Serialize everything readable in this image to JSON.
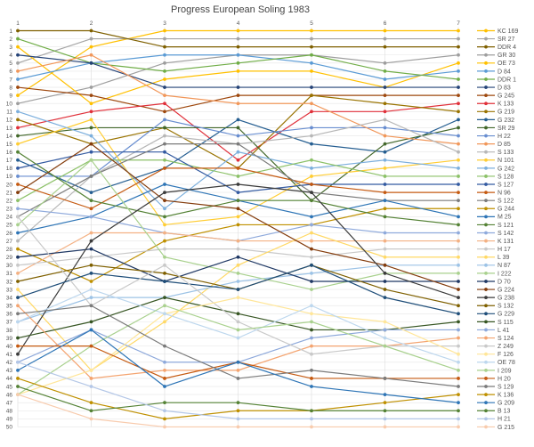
{
  "chart_data": {
    "type": "line",
    "title": "Progress European Soling 1983",
    "x": [
      1,
      2,
      3,
      4,
      5,
      6,
      7
    ],
    "ylim": [
      1,
      50
    ],
    "y_inverted": true,
    "y_ticks": [
      1,
      2,
      3,
      4,
      5,
      6,
      7,
      8,
      9,
      10,
      11,
      12,
      13,
      14,
      15,
      16,
      17,
      18,
      19,
      20,
      21,
      22,
      23,
      24,
      25,
      26,
      27,
      28,
      29,
      30,
      31,
      32,
      33,
      34,
      35,
      36,
      37,
      38,
      39,
      40,
      41,
      42,
      43,
      44,
      45,
      46,
      47,
      48,
      49,
      50
    ],
    "grid": true,
    "legend": "right",
    "series": [
      {
        "name": "KC 169",
        "color": "#FFC000",
        "values": [
          9,
          3,
          1,
          1,
          1,
          1,
          1
        ]
      },
      {
        "name": "SR 27",
        "color": "#A5A5A5",
        "values": [
          5,
          2,
          2,
          2,
          2,
          2,
          2
        ]
      },
      {
        "name": "DDR 4",
        "color": "#7F6000",
        "values": [
          1,
          1,
          3,
          3,
          3,
          3,
          3
        ]
      },
      {
        "name": "GR 30",
        "color": "#9E9E9E",
        "values": [
          10,
          8,
          5,
          4,
          4,
          5,
          4
        ]
      },
      {
        "name": "OE 73",
        "color": "#FFC000",
        "values": [
          3,
          10,
          7,
          6,
          6,
          8,
          5
        ]
      },
      {
        "name": "D 84",
        "color": "#5B9BD5",
        "values": [
          7,
          5,
          4,
          4,
          5,
          7,
          6
        ]
      },
      {
        "name": "DDR 1",
        "color": "#70AD47",
        "values": [
          2,
          5,
          6,
          5,
          4,
          6,
          7
        ]
      },
      {
        "name": "D 83",
        "color": "#264478",
        "values": [
          4,
          5,
          8,
          8,
          8,
          8,
          8
        ]
      },
      {
        "name": "G 245",
        "color": "#9E480E",
        "values": [
          8,
          9,
          11,
          9,
          9,
          9,
          9
        ]
      },
      {
        "name": "K 133",
        "color": "#E0303A",
        "values": [
          13,
          11,
          10,
          17,
          11,
          11,
          10
        ]
      },
      {
        "name": "G 219",
        "color": "#997300",
        "values": [
          12,
          15,
          13,
          18,
          9,
          10,
          11
        ]
      },
      {
        "name": "G 232",
        "color": "#255E91",
        "values": [
          17,
          21,
          18,
          12,
          15,
          16,
          12
        ]
      },
      {
        "name": "SR 29",
        "color": "#43682B",
        "values": [
          14,
          13,
          13,
          13,
          22,
          15,
          13
        ]
      },
      {
        "name": "H 22",
        "color": "#698ED0",
        "values": [
          19,
          19,
          12,
          14,
          13,
          13,
          14
        ]
      },
      {
        "name": "D 85",
        "color": "#F1975A",
        "values": [
          6,
          4,
          9,
          10,
          10,
          14,
          15
        ]
      },
      {
        "name": "S 133",
        "color": "#B7B7B7",
        "values": [
          27,
          19,
          14,
          15,
          14,
          12,
          16
        ]
      },
      {
        "name": "N 101",
        "color": "#FFCD33",
        "values": [
          15,
          12,
          25,
          24,
          19,
          18,
          17
        ]
      },
      {
        "name": "G 242",
        "color": "#7CAFDD",
        "values": [
          11,
          14,
          23,
          16,
          18,
          17,
          18
        ]
      },
      {
        "name": "S 128",
        "color": "#8CC168",
        "values": [
          22,
          17,
          17,
          19,
          17,
          19,
          19
        ]
      },
      {
        "name": "S 127",
        "color": "#335AA1",
        "values": [
          18,
          16,
          16,
          21,
          20,
          20,
          20
        ]
      },
      {
        "name": "N 96",
        "color": "#C55A11",
        "values": [
          20,
          23,
          18,
          18,
          20,
          21,
          21
        ]
      },
      {
        "name": "S 122",
        "color": "#7B7B7B",
        "values": [
          24,
          19,
          15,
          15,
          21,
          22,
          22
        ]
      },
      {
        "name": "G 244",
        "color": "#BF9000",
        "values": [
          28,
          32,
          27,
          25,
          25,
          23,
          23
        ]
      },
      {
        "name": "M 25",
        "color": "#2E75B6",
        "values": [
          26,
          24,
          20,
          22,
          24,
          22,
          24
        ]
      },
      {
        "name": "S 121",
        "color": "#548235",
        "values": [
          16,
          22,
          24,
          22,
          22,
          24,
          25
        ]
      },
      {
        "name": "S 142",
        "color": "#8FAADC",
        "values": [
          23,
          24,
          26,
          27,
          25,
          26,
          26
        ]
      },
      {
        "name": "K 131",
        "color": "#F4B183",
        "values": [
          31,
          26,
          26,
          27,
          27,
          27,
          27
        ]
      },
      {
        "name": "H 17",
        "color": "#C9C9C9",
        "values": [
          30,
          29,
          28,
          28,
          29,
          28,
          28
        ]
      },
      {
        "name": "L 39",
        "color": "#FFD966",
        "values": [
          33,
          43,
          37,
          30,
          26,
          29,
          29
        ]
      },
      {
        "name": "N 87",
        "color": "#9DC3E6",
        "values": [
          37,
          34,
          34,
          32,
          31,
          30,
          30
        ]
      },
      {
        "name": "I 222",
        "color": "#A9D18E",
        "values": [
          25,
          17,
          29,
          31,
          33,
          31,
          31
        ]
      },
      {
        "name": "D 70",
        "color": "#1F3864",
        "values": [
          29,
          28,
          32,
          29,
          32,
          32,
          32
        ]
      },
      {
        "name": "G 224",
        "color": "#843C0C",
        "values": [
          21,
          15,
          22,
          23,
          28,
          30,
          33
        ]
      },
      {
        "name": "G 238",
        "color": "#3B3B3B",
        "values": [
          41,
          27,
          21,
          20,
          21,
          31,
          34
        ]
      },
      {
        "name": "S 132",
        "color": "#7F6000",
        "values": [
          32,
          30,
          31,
          33,
          30,
          33,
          35
        ]
      },
      {
        "name": "G 229",
        "color": "#1F4E79",
        "values": [
          34,
          31,
          32,
          33,
          30,
          34,
          36
        ]
      },
      {
        "name": "S 115",
        "color": "#375623",
        "values": [
          39,
          37,
          34,
          36,
          38,
          38,
          37
        ]
      },
      {
        "name": "L 41",
        "color": "#8EA9DB",
        "values": [
          42,
          38,
          42,
          42,
          39,
          38,
          38
        ]
      },
      {
        "name": "S 124",
        "color": "#F4A470",
        "values": [
          35,
          44,
          43,
          43,
          40,
          40,
          39
        ]
      },
      {
        "name": "Z 249",
        "color": "#C9C9C9",
        "values": [
          24,
          35,
          30,
          37,
          41,
          40,
          40
        ]
      },
      {
        "name": "F 126",
        "color": "#FFE699",
        "values": [
          46,
          43,
          36,
          34,
          36,
          37,
          41
        ]
      },
      {
        "name": "OE 78",
        "color": "#BDD7EE",
        "values": [
          37,
          33,
          36,
          39,
          35,
          39,
          42
        ]
      },
      {
        "name": "I 209",
        "color": "#A9D18E",
        "values": [
          46,
          40,
          35,
          38,
          37,
          40,
          43
        ]
      },
      {
        "name": "H 20",
        "color": "#C55A11",
        "values": [
          40,
          40,
          44,
          42,
          44,
          44,
          44
        ]
      },
      {
        "name": "S 129",
        "color": "#7B7B7B",
        "values": [
          36,
          35,
          40,
          44,
          43,
          44,
          45
        ]
      },
      {
        "name": "K 136",
        "color": "#BF9000",
        "values": [
          44,
          47,
          49,
          48,
          48,
          47,
          46
        ]
      },
      {
        "name": "G 209",
        "color": "#2E75B6",
        "values": [
          43,
          38,
          45,
          42,
          45,
          46,
          47
        ]
      },
      {
        "name": "B 13",
        "color": "#548235",
        "values": [
          45,
          48,
          47,
          47,
          48,
          48,
          48
        ]
      },
      {
        "name": "H 21",
        "color": "#B4C7E7",
        "values": [
          42,
          45,
          48,
          49,
          49,
          49,
          49
        ]
      },
      {
        "name": "G 215",
        "color": "#F8CBAD",
        "values": [
          46,
          49,
          50,
          50,
          50,
          50,
          50
        ]
      }
    ]
  }
}
